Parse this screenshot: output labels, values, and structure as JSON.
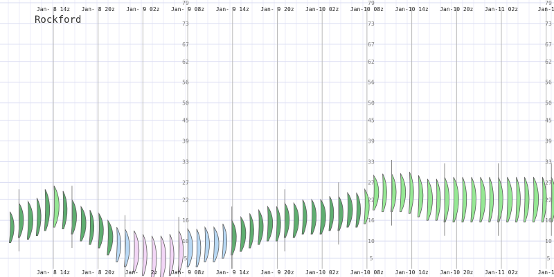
{
  "station": "Rockford",
  "chart_data": {
    "type": "plume",
    "title": "Rockford",
    "ylim": [
      2,
      79
    ],
    "y_ticks": [
      5,
      10,
      16,
      22,
      27,
      33,
      39,
      45,
      50,
      56,
      62,
      67,
      73,
      79
    ],
    "y_tick_labels": [
      "5",
      "10",
      "16",
      "22",
      "27",
      "33",
      "39",
      "45",
      "50",
      "56",
      "62",
      "67",
      "73",
      "79"
    ],
    "time_labels": [
      "Jan- 8 14z",
      "Jan- 8 20z",
      "Jan- 9 02z",
      "Jan- 9 08z",
      "Jan- 9 14z",
      "Jan- 9 20z",
      "Jan-10 02z",
      "Jan-10 08z",
      "Jan-10 14z",
      "Jan-10 20z",
      "Jan-11 02z",
      "Jan-1"
    ],
    "time_label_hours": [
      14,
      20,
      26,
      32,
      38,
      44,
      50,
      56,
      62,
      68,
      74,
      80
    ],
    "top_time_labels": [
      "Jan- 8 14z",
      "Jan- 8 20z",
      "Jan- 9 02z",
      "Jan- 9 08z",
      "Jan- 9 14z",
      "Jan- 9 20z",
      "Jan-10 02z",
      "Jan-10 08z",
      "Jan-10 14z",
      "Jan-10 20z",
      "Jan-11 02z",
      "Jan-1"
    ],
    "bottom_time_labels": [
      "Jan- 8 14z",
      "Jan- 8 20z",
      "Jan-",
      "2z",
      "Jan- 9 08z",
      "Jan- 9 14z",
      "Jan- 9 20z",
      "Jan-10 02z",
      "Jan-10 08z",
      "Jan-10 14z",
      "Jan-10 20z",
      "Jan-11 02z",
      "Jan-1"
    ],
    "tall_line_hours": [
      26,
      32,
      56,
      62,
      68,
      74,
      80
    ],
    "x_start_hour": 8.2,
    "x_hours_per_member": 0.75,
    "series": [
      {
        "hours": [
          8.2,
          9.4,
          10.6,
          11.8,
          12.9,
          14.1,
          15.3,
          16.5,
          17.7,
          18.9,
          20.1,
          21.3,
          22.5,
          23.6,
          24.8,
          26.0,
          27.2,
          28.4,
          29.6,
          30.8,
          32.0,
          33.2,
          34.3,
          35.5,
          36.7,
          37.9,
          39.1,
          40.3,
          41.5,
          42.7,
          43.9,
          45.0,
          46.2,
          47.4,
          48.6,
          49.8,
          51.0,
          52.2,
          53.4,
          54.6,
          55.7,
          56.9,
          58.1,
          59.3,
          60.5,
          61.7,
          62.9,
          64.1,
          65.3,
          66.4,
          67.6,
          68.8,
          70.0,
          71.2,
          72.4,
          73.6,
          74.8,
          76.0,
          77.1,
          78.3,
          79.5,
          80.7
        ]
      },
      {
        "temps": [
          14,
          16,
          16,
          17,
          19,
          20,
          19,
          17,
          15,
          14,
          13,
          11,
          9,
          8,
          7,
          6,
          5,
          5,
          6,
          7,
          8,
          8,
          9,
          9,
          10,
          11,
          12,
          13,
          14,
          15,
          15,
          16,
          16,
          17,
          17,
          17,
          18,
          18,
          19,
          19,
          20,
          24,
          24,
          24,
          24,
          24,
          23,
          22,
          22,
          22,
          22,
          22,
          22,
          22,
          22,
          22,
          22,
          22,
          22,
          22,
          22,
          22
        ]
      },
      {
        "spreads": [
          9,
          10,
          11,
          11,
          12,
          12,
          11,
          10,
          10,
          10,
          10,
          10,
          10,
          11,
          12,
          12,
          13,
          13,
          12,
          12,
          11,
          11,
          10,
          10,
          10,
          10,
          10,
          10,
          10,
          10,
          10,
          10,
          10,
          10,
          10,
          10,
          10,
          10,
          10,
          10,
          10,
          10,
          11,
          11,
          11,
          12,
          12,
          12,
          12,
          13,
          13,
          13,
          13,
          13,
          13,
          13,
          13,
          13,
          13,
          13,
          13,
          13
        ]
      }
    ]
  },
  "colors": {
    "cold": "#f2d6f6",
    "cool": "#b8d8f4",
    "mild": "#5fae70",
    "warm": "#96e894",
    "grid_h": "#dadcf2",
    "grid_v": "#eceef8",
    "line_major": "#b8b8b8"
  }
}
